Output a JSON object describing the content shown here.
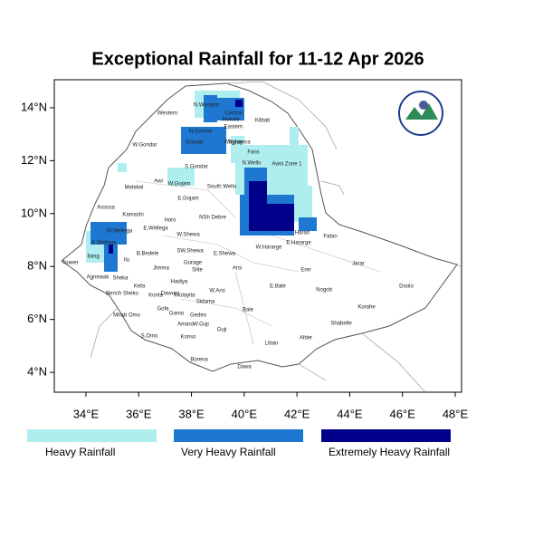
{
  "title": "Exceptional Rainfall for 11-12 Apr 2026",
  "map": {
    "xlim": [
      32.8,
      48.24
    ],
    "ylim": [
      3.25,
      15.06
    ],
    "xticks": [
      {
        "value": 34,
        "label": "34°E"
      },
      {
        "value": 36,
        "label": "36°E"
      },
      {
        "value": 38,
        "label": "38°E"
      },
      {
        "value": 40,
        "label": "40°E"
      },
      {
        "value": 42,
        "label": "42°E"
      },
      {
        "value": 44,
        "label": "44°E"
      },
      {
        "value": 46,
        "label": "46°E"
      },
      {
        "value": 48,
        "label": "48°E"
      }
    ],
    "yticks": [
      {
        "value": 4,
        "label": "4°N"
      },
      {
        "value": 6,
        "label": "6°N"
      },
      {
        "value": 8,
        "label": "8°N"
      },
      {
        "value": 10,
        "label": "10°N"
      },
      {
        "value": 12,
        "label": "12°N"
      },
      {
        "value": 14,
        "label": "14°N"
      }
    ],
    "regions": [
      "Western",
      "N.Western",
      "Central",
      "Eastern",
      "Mekele",
      "Kilbati",
      "N.Gondar",
      "Gondar",
      "Waghamra",
      "Tigray",
      "Fans",
      "W.Gondar",
      "S.Gondar",
      "Awsi Zone 1",
      "N.Wello",
      "Metekel",
      "Awi",
      "W.Gojam",
      "E.Gojam",
      "South Wello",
      "Assosa",
      "Kamashi",
      "Horo",
      "NSh Debre",
      "E.Wellega",
      "W.Wellega",
      "K.Wellega",
      "W.Shewa",
      "E.Shewa",
      "W.Hararge",
      "E.Hararge",
      "Harari",
      "Fafan",
      "Ilu",
      "B.Bedele",
      "Jimma",
      "SW.Shewa",
      "Gurage",
      "Arsi",
      "Erer",
      "Jarar",
      "Nuwer",
      "Itang",
      "Agnewak",
      "Sheka",
      "Kefa",
      "Bench Sheko",
      "Konta",
      "Dawuro",
      "Wolayita",
      "Silte",
      "Hadiya",
      "W.Arsi",
      "Sidama",
      "E.Bale",
      "Nogob",
      "Doolo",
      "Korahe",
      "Mirab Omo",
      "Gofa",
      "Gamo",
      "Gedeo",
      "Bale",
      "Shabelle",
      "S.Omo",
      "Konso",
      "Amaro",
      "W.Guji",
      "Guji",
      "Liban",
      "Afder",
      "Borena",
      "Dawa"
    ]
  },
  "legend": [
    {
      "label": "Heavy Rainfall",
      "color": "#aeeeee"
    },
    {
      "label": "Very Heavy Rainfall",
      "color": "#1e78d2"
    },
    {
      "label": "Extremely Heavy Rainfall",
      "color": "#00008b"
    }
  ]
}
